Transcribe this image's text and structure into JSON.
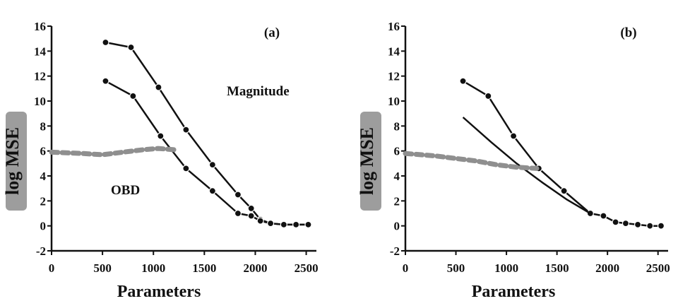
{
  "chart_data": [
    {
      "type": "line",
      "panel_label": "(a)",
      "xlabel": "Parameters",
      "ylabel": "log MSE",
      "xlim": [
        0,
        2600
      ],
      "ylim": [
        -2,
        16
      ],
      "xticks": [
        "0",
        "500",
        "1000",
        "1500",
        "2000",
        "2500"
      ],
      "yticks": [
        "-2",
        "0",
        "2",
        "4",
        "6",
        "8",
        "10",
        "12",
        "14",
        "16"
      ],
      "annotations": [
        "Magnitude",
        "OBD"
      ],
      "series": [
        {
          "name": "Magnitude",
          "style": "line-markers",
          "x": [
            530,
            780,
            1050,
            1320,
            1580,
            1830,
            1960,
            2050,
            2150,
            2280,
            2400,
            2520
          ],
          "y": [
            14.7,
            14.3,
            11.1,
            7.7,
            4.9,
            2.5,
            1.4,
            0.5,
            0.2,
            0.1,
            0.1,
            0.1
          ]
        },
        {
          "name": "OBD",
          "style": "line-markers",
          "x": [
            530,
            800,
            1070,
            1320,
            1580,
            1830,
            1960,
            2050,
            2150,
            2280,
            2400,
            2520
          ],
          "y": [
            11.6,
            10.4,
            7.2,
            4.6,
            2.8,
            1.0,
            0.8,
            0.4,
            0.2,
            0.1,
            0.1,
            0.1
          ]
        },
        {
          "style": "gray-dashed",
          "x": [
            0,
            300,
            500,
            700,
            900,
            1050,
            1200
          ],
          "y": [
            5.9,
            5.8,
            5.7,
            5.9,
            6.1,
            6.2,
            6.1
          ]
        }
      ]
    },
    {
      "type": "line",
      "panel_label": "(b)",
      "xlabel": "Parameters",
      "ylabel": "log MSE",
      "xlim": [
        0,
        2600
      ],
      "ylim": [
        -2,
        16
      ],
      "xticks": [
        "0",
        "500",
        "1000",
        "1500",
        "2000",
        "2500"
      ],
      "yticks": [
        "-2",
        "0",
        "2",
        "4",
        "6",
        "8",
        "10",
        "12",
        "14",
        "16"
      ],
      "series": [
        {
          "style": "line-markers",
          "x": [
            570,
            820,
            1070,
            1320,
            1570,
            1830,
            1960,
            2080,
            2180,
            2300,
            2420,
            2530
          ],
          "y": [
            11.6,
            10.4,
            7.2,
            4.6,
            2.8,
            1.0,
            0.8,
            0.3,
            0.2,
            0.1,
            0.0,
            0.0
          ]
        },
        {
          "style": "line",
          "x": [
            570,
            850,
            1100,
            1350,
            1600,
            1830
          ],
          "y": [
            8.7,
            6.7,
            5.0,
            3.5,
            2.1,
            1.0
          ]
        },
        {
          "style": "gray-dashed",
          "x": [
            0,
            300,
            500,
            700,
            900,
            1100,
            1300
          ],
          "y": [
            5.8,
            5.6,
            5.4,
            5.2,
            4.9,
            4.7,
            4.6
          ]
        }
      ]
    }
  ]
}
